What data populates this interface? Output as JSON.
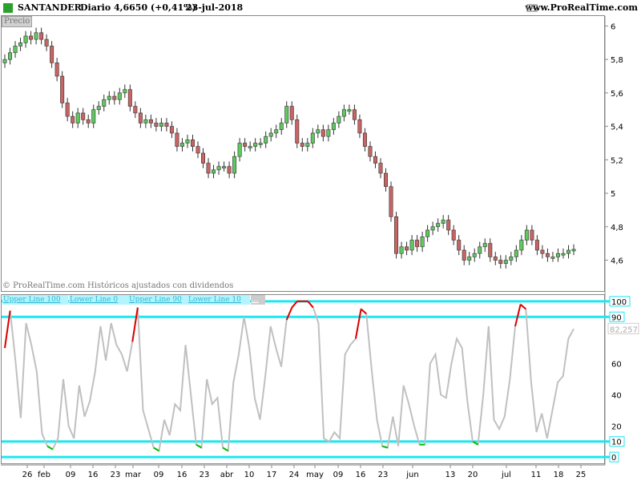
{
  "header": {
    "symbol": "SANTANDER",
    "period": "Diario",
    "quote": "4,6650 (+0,41%)",
    "date": "23-jul-2018",
    "site": "www.ProRealTime.com"
  },
  "price_panel": {
    "badge": "Precio",
    "copyright": "© ProRealTime.com  Históricos ajustados con dividendos"
  },
  "indicator_panel": {
    "legend": [
      "Upper Line 100",
      "Lower Line 0",
      "Upper Line 90",
      "Lower Line 10",
      "..."
    ],
    "current_value_label": "82,257"
  },
  "colors": {
    "up_candle": "#5fc85f",
    "down_candle": "#c86464",
    "level_line": "#1fe6f0",
    "oscillator": "#c0c0c0",
    "overbought": "#e00000",
    "oversold": "#00c000"
  },
  "chart_data": [
    {
      "type": "candlestick",
      "title": "SANTANDER Diario",
      "y_ticks": [
        "6",
        "5,8",
        "5,6",
        "5,4",
        "5,2",
        "5",
        "4,8",
        "4,6"
      ],
      "ylim": [
        4.43,
        6.05
      ],
      "x_ticks": [
        "26",
        "feb",
        "09",
        "16",
        "23",
        "mar",
        "09",
        "16",
        "23",
        "abr",
        "10",
        "17",
        "24",
        "may",
        "09",
        "16",
        "23",
        "jun",
        "13",
        "20",
        "jul",
        "11",
        "18",
        "25"
      ],
      "ohlc_close": [
        5.8,
        5.84,
        5.88,
        5.9,
        5.94,
        5.92,
        5.96,
        5.92,
        5.88,
        5.78,
        5.7,
        5.54,
        5.46,
        5.42,
        5.48,
        5.44,
        5.42,
        5.5,
        5.52,
        5.56,
        5.58,
        5.56,
        5.6,
        5.62,
        5.52,
        5.48,
        5.42,
        5.44,
        5.42,
        5.4,
        5.42,
        5.4,
        5.36,
        5.28,
        5.3,
        5.32,
        5.28,
        5.24,
        5.18,
        5.12,
        5.14,
        5.16,
        5.16,
        5.12,
        5.22,
        5.3,
        5.28,
        5.28,
        5.3,
        5.3,
        5.34,
        5.36,
        5.38,
        5.42,
        5.52,
        5.44,
        5.3,
        5.28,
        5.3,
        5.36,
        5.38,
        5.34,
        5.38,
        5.42,
        5.46,
        5.5,
        5.5,
        5.44,
        5.36,
        5.28,
        5.22,
        5.18,
        5.12,
        5.04,
        4.86,
        4.64,
        4.68,
        4.66,
        4.72,
        4.68,
        4.74,
        4.78,
        4.8,
        4.82,
        4.84,
        4.78,
        4.72,
        4.66,
        4.6,
        4.62,
        4.64,
        4.68,
        4.7,
        4.62,
        4.6,
        4.58,
        4.6,
        4.62,
        4.66,
        4.72,
        4.78,
        4.72,
        4.66,
        4.64,
        4.62,
        4.62,
        4.64,
        4.64,
        4.66,
        4.665
      ]
    },
    {
      "type": "line",
      "series": [
        {
          "name": "",
          "values": [
            70,
            94,
            62,
            25,
            86,
            72,
            55,
            15,
            7,
            5,
            12,
            50,
            20,
            12,
            46,
            26,
            36,
            55,
            84,
            62,
            86,
            72,
            66,
            55,
            74,
            96,
            30,
            18,
            6,
            4,
            24,
            14,
            34,
            30,
            72,
            40,
            8,
            6,
            50,
            34,
            38,
            6,
            4,
            48,
            66,
            90,
            70,
            38,
            24,
            52,
            84,
            70,
            58,
            88,
            96,
            100,
            100,
            100,
            96,
            86,
            12,
            10,
            16,
            12,
            66,
            72,
            76,
            95,
            92,
            56,
            24,
            7,
            6,
            26,
            7,
            46,
            34,
            20,
            8,
            8,
            60,
            66,
            40,
            38,
            60,
            76,
            70,
            36,
            10,
            8,
            40,
            84,
            24,
            18,
            26,
            50,
            84,
            98,
            95,
            48,
            16,
            28,
            12,
            30,
            48,
            52,
            76,
            82.257
          ]
        }
      ],
      "y_ticks": [
        "100",
        "90",
        "60",
        "40",
        "20",
        "10",
        "0"
      ],
      "levels": [
        100,
        90,
        10,
        0
      ],
      "ylim": [
        -3,
        103
      ]
    }
  ]
}
